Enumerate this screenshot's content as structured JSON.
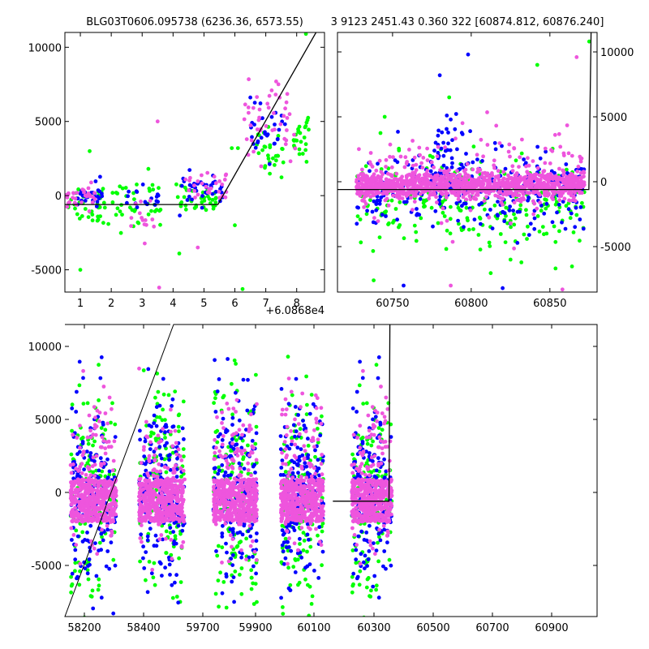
{
  "chart_data": [
    {
      "panel": "top-left",
      "type": "scatter",
      "title": "BLG03T0606.095738 (6236.36, 6573.55)",
      "x_offset_label": "+6.0868e4",
      "xlim": [
        0.5,
        8.9
      ],
      "ylim": [
        -6500,
        11000
      ],
      "xticks": [
        1,
        2,
        3,
        4,
        5,
        6,
        7,
        8
      ],
      "yticks": [
        -5000,
        0,
        5000,
        10000
      ],
      "ytick_side": "left",
      "series": [
        {
          "color": "#00ff00",
          "clusters": [
            {
              "x": [
                0.6,
                1.8
              ],
              "y": [
                -2000,
                1000
              ],
              "n": 40
            },
            {
              "x": [
                1.9,
                3.1
              ],
              "y": [
                -2200,
                900
              ],
              "n": 25
            },
            {
              "x": [
                3.0,
                3.6
              ],
              "y": [
                -1800,
                800
              ],
              "n": 14
            },
            {
              "x": [
                4.1,
                5.4
              ],
              "y": [
                -1200,
                700
              ],
              "n": 38
            },
            {
              "x": [
                6.7,
                7.6
              ],
              "y": [
                1400,
                4500
              ],
              "n": 30
            },
            {
              "x": [
                7.9,
                8.4
              ],
              "y": [
                2500,
                5300
              ],
              "n": 26
            }
          ]
        },
        {
          "color": "#0000ff",
          "clusters": [
            {
              "x": [
                0.9,
                1.7
              ],
              "y": [
                -800,
                900
              ],
              "n": 30
            },
            {
              "x": [
                2.4,
                3.6
              ],
              "y": [
                -900,
                800
              ],
              "n": 18
            },
            {
              "x": [
                4.2,
                5.7
              ],
              "y": [
                -600,
                1400
              ],
              "n": 36
            },
            {
              "x": [
                6.5,
                7.7
              ],
              "y": [
                2600,
                6000
              ],
              "n": 30
            }
          ]
        },
        {
          "color": "#ee55dd",
          "clusters": [
            {
              "x": [
                0.5,
                1.5
              ],
              "y": [
                -900,
                600
              ],
              "n": 30
            },
            {
              "x": [
                2.6,
                3.4
              ],
              "y": [
                -2600,
                200
              ],
              "n": 14
            },
            {
              "x": [
                4.4,
                5.8
              ],
              "y": [
                -700,
                1700
              ],
              "n": 30
            },
            {
              "x": [
                6.3,
                8.0
              ],
              "y": [
                2500,
                7600
              ],
              "n": 45
            }
          ]
        }
      ],
      "outliers": [
        {
          "x": 1.3,
          "y": 3000,
          "color": "#00ff00"
        },
        {
          "x": 1.0,
          "y": -5000,
          "color": "#00ff00"
        },
        {
          "x": 3.5,
          "y": 5000,
          "color": "#ee55dd"
        },
        {
          "x": 3.2,
          "y": 1800,
          "color": "#00ff00"
        },
        {
          "x": 4.2,
          "y": -3900,
          "color": "#00ff00"
        },
        {
          "x": 6.0,
          "y": -2000,
          "color": "#00ff00"
        },
        {
          "x": 6.1,
          "y": 3200,
          "color": "#00ff00"
        },
        {
          "x": 5.9,
          "y": 3200,
          "color": "#00ff00"
        },
        {
          "x": 8.3,
          "y": 10900,
          "color": "#00ff00"
        },
        {
          "x": 4.8,
          "y": -3500,
          "color": "#ee55dd"
        },
        {
          "x": 6.25,
          "y": -6300,
          "color": "#00ff00"
        },
        {
          "x": 3.55,
          "y": -6200,
          "color": "#ee55dd"
        }
      ],
      "model_line": {
        "x": [
          0.5,
          5.45,
          8.9
        ],
        "y": [
          -600,
          -600,
          12000
        ]
      }
    },
    {
      "panel": "top-right",
      "type": "scatter",
      "title": "3 9123 2451.43 0.360 322 [60874.812, 60876.240]",
      "xlim": [
        60715,
        60880
      ],
      "ylim": [
        -8500,
        11500
      ],
      "xticks": [
        60750,
        60800,
        60850
      ],
      "yticks": [
        -5000,
        0,
        5000,
        10000
      ],
      "ytick_side": "right",
      "series": [
        {
          "color": "#00ff00",
          "clusters": [
            {
              "x": [
                60727,
                60872
              ],
              "y": [
                -5500,
                1800
              ],
              "n": 240
            }
          ]
        },
        {
          "color": "#0000ff",
          "clusters": [
            {
              "x": [
                60727,
                60872
              ],
              "y": [
                -3500,
                2200
              ],
              "n": 300
            },
            {
              "x": [
                60775,
                60800
              ],
              "y": [
                0,
                5000
              ],
              "n": 40
            }
          ]
        },
        {
          "color": "#ee55dd",
          "clusters": [
            {
              "x": [
                60727,
                60872
              ],
              "y": [
                -1300,
                700
              ],
              "n": 1000
            },
            {
              "x": [
                60727,
                60872
              ],
              "y": [
                -3000,
                3500
              ],
              "n": 200
            }
          ]
        }
      ],
      "outliers": [
        {
          "x": 60798,
          "y": 9800,
          "color": "#0000ff"
        },
        {
          "x": 60780,
          "y": 8200,
          "color": "#0000ff"
        },
        {
          "x": 60786,
          "y": 6500,
          "color": "#00ff00"
        },
        {
          "x": 60842,
          "y": 9000,
          "color": "#00ff00"
        },
        {
          "x": 60867,
          "y": 9600,
          "color": "#ee55dd"
        },
        {
          "x": 60875,
          "y": 10800,
          "color": "#00ff00"
        },
        {
          "x": 60745,
          "y": 5000,
          "color": "#00ff00"
        },
        {
          "x": 60738,
          "y": -7600,
          "color": "#00ff00"
        },
        {
          "x": 60757,
          "y": -8000,
          "color": "#0000ff"
        },
        {
          "x": 60787,
          "y": -8000,
          "color": "#ee55dd"
        },
        {
          "x": 60820,
          "y": -8200,
          "color": "#0000ff"
        },
        {
          "x": 60858,
          "y": -8300,
          "color": "#ee55dd"
        },
        {
          "x": 60825,
          "y": -6000,
          "color": "#00ff00"
        }
      ],
      "model_line": {
        "x": [
          60715,
          60874.8,
          60876.2
        ],
        "y": [
          -600,
          -600,
          11500
        ]
      }
    },
    {
      "panel": "bottom",
      "type": "scatter",
      "xlim": [
        58150,
        60950
      ],
      "ylim": [
        -8500,
        11500
      ],
      "axis_break": true,
      "xtick_labels": [
        "58200",
        "58400",
        "59700",
        "59900",
        "60100",
        "60300",
        "60500",
        "60700",
        "60900"
      ],
      "yticks": [
        -5000,
        0,
        5000,
        10000
      ],
      "ytick_side": "left",
      "seasons": [
        {
          "x": [
            58180,
            58420
          ]
        },
        {
          "x": [
            58540,
            58780
          ]
        },
        {
          "x": [
            58930,
            59160
          ]
        },
        {
          "x": [
            59285,
            59510
          ]
        },
        {
          "x": [
            59660,
            59870
          ]
        }
      ],
      "series": [
        {
          "color": "#00ff00",
          "spread": [
            -8200,
            9500
          ],
          "n_per_season": 140
        },
        {
          "color": "#0000ff",
          "spread": [
            -7000,
            9000
          ],
          "n_per_season": 180
        },
        {
          "color": "#ee55dd",
          "core": [
            -2000,
            900
          ],
          "spread": [
            -5000,
            8500
          ],
          "n_per_season": 520
        }
      ],
      "model_line": {
        "x": [
          59560,
          59855,
          59860
        ],
        "y": [
          -600,
          -600,
          11500
        ]
      }
    }
  ]
}
